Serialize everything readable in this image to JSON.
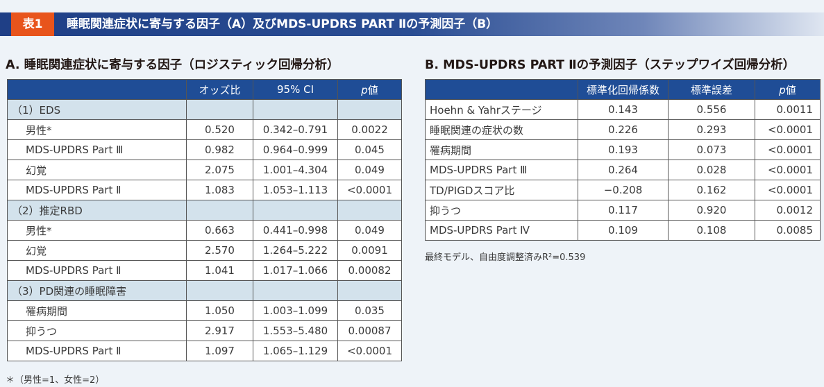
{
  "header": {
    "tag": "表1",
    "title": "睡眠関連症状に寄与する因子（A）及びMDS-UPDRS PART Ⅱの予測因子（B）"
  },
  "table_a": {
    "title": "A. 睡眠関連症状に寄与する因子（ロジスティック回帰分析）",
    "columns": [
      "",
      "オッズ比",
      "95% CI",
      "p",
      "値"
    ],
    "groups": [
      {
        "label": "（1）EDS",
        "rows": [
          {
            "label": "男性*",
            "or": "0.520",
            "ci": "0.342–0.791",
            "p": "0.0022"
          },
          {
            "label": "MDS-UPDRS Part Ⅲ",
            "or": "0.982",
            "ci": "0.964–0.999",
            "p": "0.045"
          },
          {
            "label": "幻覚",
            "or": "2.075",
            "ci": "1.001–4.304",
            "p": "0.049"
          },
          {
            "label": "MDS-UPDRS Part Ⅱ",
            "or": "1.083",
            "ci": "1.053–1.113",
            "p": "<0.0001"
          }
        ]
      },
      {
        "label": "（2）推定RBD",
        "rows": [
          {
            "label": "男性*",
            "or": "0.663",
            "ci": "0.441–0.998",
            "p": "0.049"
          },
          {
            "label": "幻覚",
            "or": "2.570",
            "ci": "1.264–5.222",
            "p": "0.0091"
          },
          {
            "label": "MDS-UPDRS Part Ⅱ",
            "or": "1.041",
            "ci": "1.017–1.066",
            "p": "0.00082"
          }
        ]
      },
      {
        "label": "（3）PD関連の睡眠障害",
        "rows": [
          {
            "label": "罹病期間",
            "or": "1.050",
            "ci": "1.003–1.099",
            "p": "0.035"
          },
          {
            "label": "抑うつ",
            "or": "2.917",
            "ci": "1.553–5.480",
            "p": "0.00087"
          },
          {
            "label": "MDS-UPDRS Part Ⅱ",
            "or": "1.097",
            "ci": "1.065–1.129",
            "p": "<0.0001"
          }
        ]
      }
    ],
    "footnote": "＊（男性=1、女性=2）"
  },
  "table_b": {
    "title": "B. MDS-UPDRS PART Ⅱの予測因子（ステップワイズ回帰分析）",
    "columns": [
      "",
      "標準化回帰係数",
      "標準誤差",
      "p",
      "値"
    ],
    "rows": [
      {
        "label": "Hoehn & Yahrステージ",
        "coef": "0.143",
        "se": "0.556",
        "p": "0.0011"
      },
      {
        "label": "睡眠関連の症状の数",
        "coef": "0.226",
        "se": "0.293",
        "p": "<0.0001"
      },
      {
        "label": "罹病期間",
        "coef": "0.193",
        "se": "0.073",
        "p": "<0.0001"
      },
      {
        "label": "MDS-UPDRS Part Ⅲ",
        "coef": "0.264",
        "se": "0.028",
        "p": "<0.0001"
      },
      {
        "label": "TD/PIGDスコア比",
        "coef": "−0.208",
        "se": "0.162",
        "p": "<0.0001"
      },
      {
        "label": "抑うつ",
        "coef": "0.117",
        "se": "0.920",
        "p": "0.0012"
      },
      {
        "label": "MDS-UPDRS Part Ⅳ",
        "coef": "0.109",
        "se": "0.108",
        "p": "0.0085"
      }
    ],
    "note": "最終モデル、自由度調整済みR²=0.539"
  }
}
